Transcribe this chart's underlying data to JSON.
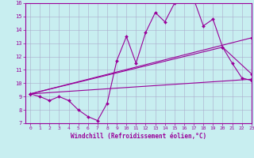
{
  "xlabel": "Windchill (Refroidissement éolien,°C)",
  "xlim": [
    -0.5,
    23
  ],
  "ylim": [
    7,
    16
  ],
  "background_color": "#c8eef0",
  "grid_color": "#aaaacc",
  "line_color": "#990099",
  "spine_color": "#990099",
  "xticks": [
    0,
    1,
    2,
    3,
    4,
    5,
    6,
    7,
    8,
    9,
    10,
    11,
    12,
    13,
    14,
    15,
    16,
    17,
    18,
    19,
    20,
    21,
    22,
    23
  ],
  "yticks": [
    7,
    8,
    9,
    10,
    11,
    12,
    13,
    14,
    15,
    16
  ],
  "series": [
    {
      "x": [
        0,
        1,
        2,
        3,
        4,
        5,
        6,
        7,
        8,
        9,
        10,
        11,
        12,
        13,
        14,
        15,
        16,
        17,
        18,
        19,
        20,
        21,
        22,
        23
      ],
      "y": [
        9.2,
        9.0,
        8.7,
        9.0,
        8.7,
        8.0,
        7.5,
        7.2,
        8.5,
        11.7,
        13.5,
        11.5,
        13.8,
        15.3,
        14.6,
        16.0,
        16.3,
        16.3,
        14.3,
        14.8,
        12.7,
        11.5,
        10.4,
        10.2
      ]
    },
    {
      "x": [
        0,
        23
      ],
      "y": [
        9.2,
        13.4
      ]
    },
    {
      "x": [
        0,
        23
      ],
      "y": [
        9.2,
        10.3
      ]
    },
    {
      "x": [
        0,
        20,
        23
      ],
      "y": [
        9.2,
        12.7,
        10.7
      ]
    }
  ]
}
